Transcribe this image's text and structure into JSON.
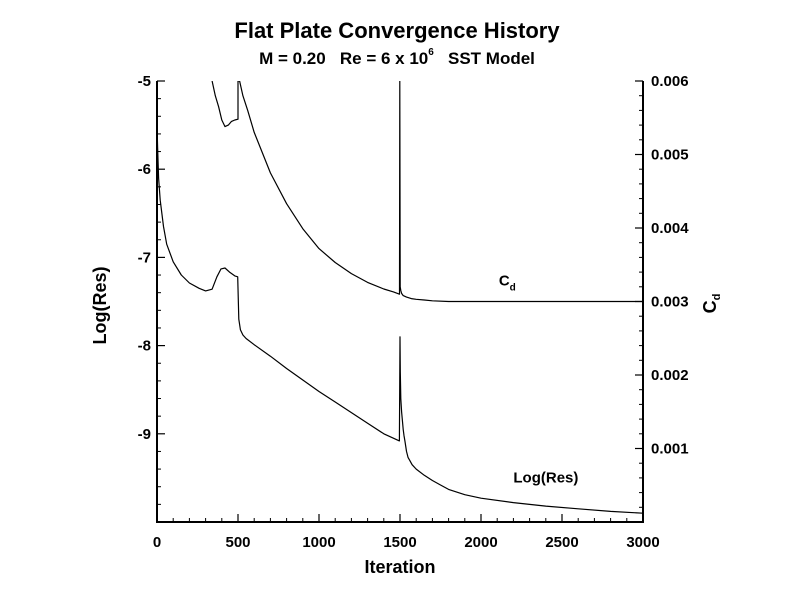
{
  "chart_data": {
    "type": "line",
    "title": "Flat Plate Convergence History",
    "subtitle": {
      "pre": "M = 0.20   Re = 6 x 10",
      "exp": "6",
      "post": "   SST Model"
    },
    "xlabel": "Iteration",
    "ylabel_left": "Log(Res)",
    "ylabel_right": {
      "base": "C",
      "sub": "d"
    },
    "xlim": [
      0,
      3000
    ],
    "ylim_left": [
      -10,
      -5
    ],
    "ylim_right": [
      0,
      0.006
    ],
    "x_ticks": [
      "0",
      "500",
      "1000",
      "1500",
      "2000",
      "2500",
      "3000"
    ],
    "x_tick_values": [
      0,
      500,
      1000,
      1500,
      2000,
      2500,
      3000
    ],
    "y_left_ticks": [
      "-5",
      "-6",
      "-7",
      "-8",
      "-9"
    ],
    "y_left_tick_values": [
      -5,
      -6,
      -7,
      -8,
      -9
    ],
    "y_right_ticks": [
      "0.006",
      "0.005",
      "0.004",
      "0.003",
      "0.002",
      "0.001"
    ],
    "y_right_tick_values": [
      0.006,
      0.005,
      0.004,
      0.003,
      0.002,
      0.001
    ],
    "grid": false,
    "series": [
      {
        "name": "Log(Res)",
        "axis": "left",
        "x": [
          0,
          4,
          10,
          20,
          40,
          60,
          100,
          150,
          200,
          260,
          300,
          340,
          370,
          395,
          420,
          450,
          480,
          498,
          500,
          505,
          515,
          530,
          550,
          600,
          700,
          800,
          900,
          1000,
          1100,
          1200,
          1300,
          1400,
          1496,
          1500,
          1502,
          1505,
          1510,
          1515,
          1520,
          1525,
          1530,
          1540,
          1550,
          1560,
          1575,
          1600,
          1650,
          1700,
          1750,
          1800,
          1900,
          2000,
          2200,
          2400,
          2600,
          2800,
          3000
        ],
        "y": [
          -5.5,
          -5.75,
          -6.1,
          -6.35,
          -6.65,
          -6.85,
          -7.05,
          -7.2,
          -7.29,
          -7.35,
          -7.38,
          -7.36,
          -7.22,
          -7.13,
          -7.12,
          -7.17,
          -7.21,
          -7.22,
          -7.35,
          -7.7,
          -7.82,
          -7.88,
          -7.92,
          -7.99,
          -8.12,
          -8.26,
          -8.39,
          -8.52,
          -8.64,
          -8.76,
          -8.88,
          -9.0,
          -9.08,
          -7.9,
          -8.3,
          -8.6,
          -8.75,
          -8.85,
          -8.95,
          -9.02,
          -9.08,
          -9.2,
          -9.27,
          -9.3,
          -9.35,
          -9.4,
          -9.47,
          -9.53,
          -9.58,
          -9.63,
          -9.69,
          -9.73,
          -9.78,
          -9.82,
          -9.85,
          -9.88,
          -9.9
        ]
      },
      {
        "name": "Cd",
        "axis": "right",
        "x": [
          340,
          360,
          380,
          400,
          420,
          440,
          460,
          480,
          500,
          500,
          510,
          530,
          560,
          600,
          700,
          800,
          900,
          1000,
          1100,
          1200,
          1300,
          1400,
          1460,
          1497,
          1499,
          1501,
          1505,
          1510,
          1520,
          1540,
          1570,
          1600,
          1650,
          1700,
          1800,
          2000,
          2200,
          2500,
          2800,
          3000
        ],
        "y": [
          0.006,
          0.0058,
          0.00565,
          0.00547,
          0.00538,
          0.0054,
          0.00545,
          0.00547,
          0.00548,
          0.006,
          0.006,
          0.0058,
          0.0056,
          0.0053,
          0.00475,
          0.00433,
          0.00399,
          0.00372,
          0.00353,
          0.00338,
          0.00326,
          0.00317,
          0.00313,
          0.0031,
          0.006,
          0.0032,
          0.00315,
          0.00311,
          0.00308,
          0.00306,
          0.00304,
          0.00303,
          0.00302,
          0.00301,
          0.003,
          0.003,
          0.003,
          0.003,
          0.003,
          0.003
        ]
      }
    ],
    "annotations": [
      {
        "series": "Cd",
        "base": "C",
        "sub": "d",
        "x": 2110,
        "y": 0.00322
      },
      {
        "series": "Log(Res)",
        "text": "Log(Res)",
        "x": 2200,
        "y": -9.55
      }
    ]
  }
}
